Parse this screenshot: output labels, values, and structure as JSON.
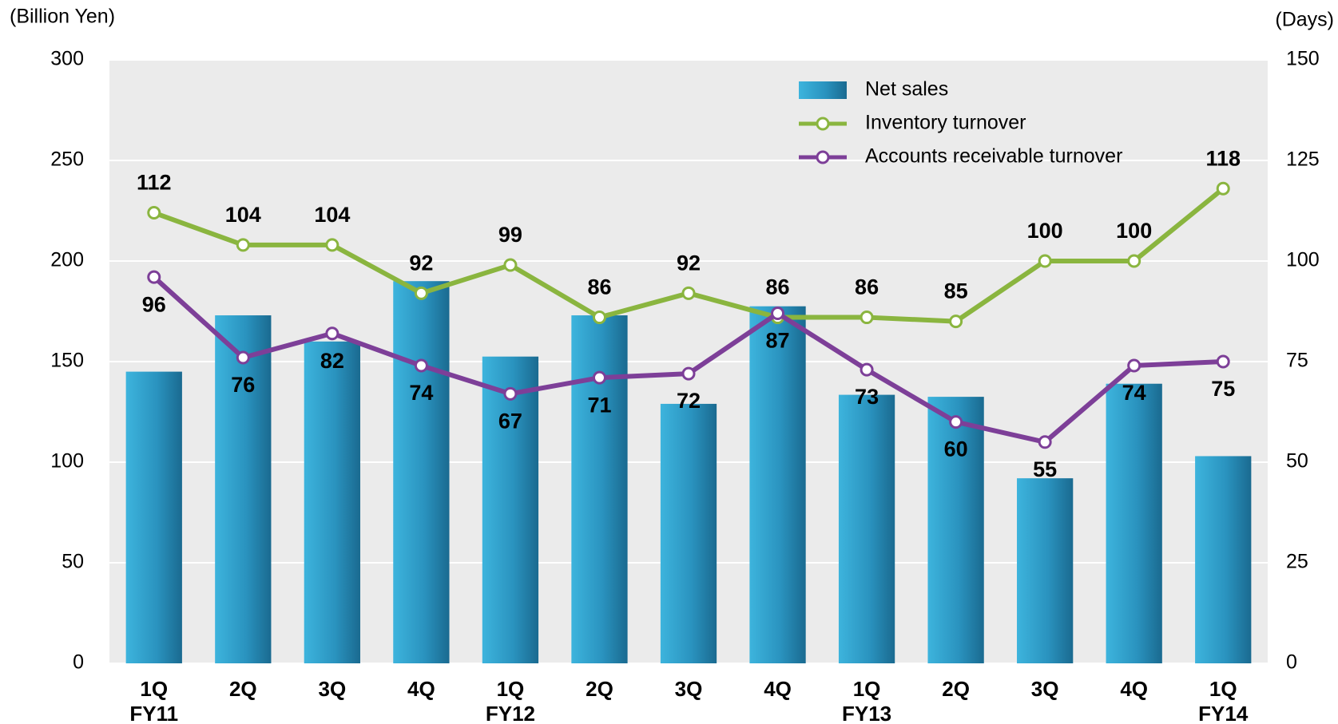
{
  "chart_data": {
    "type": "bar_line",
    "y_label": "(Billion Yen)",
    "y2_label": "(Days)",
    "categories": [
      [
        "1Q",
        "FY11"
      ],
      [
        "2Q"
      ],
      [
        "3Q"
      ],
      [
        "4Q"
      ],
      [
        "1Q",
        "FY12"
      ],
      [
        "2Q"
      ],
      [
        "3Q"
      ],
      [
        "4Q"
      ],
      [
        "1Q",
        "FY13"
      ],
      [
        "2Q"
      ],
      [
        "3Q"
      ],
      [
        "4Q"
      ],
      [
        "1Q",
        "FY14"
      ]
    ],
    "ylim": [
      0,
      300
    ],
    "yticks": [
      0,
      50,
      100,
      150,
      200,
      250,
      300
    ],
    "y2lim": [
      0,
      150
    ],
    "y2ticks": [
      0,
      25,
      50,
      75,
      100,
      125,
      150
    ],
    "grid": true,
    "legend": "upper right",
    "series": [
      {
        "name": "Net sales",
        "type": "bar",
        "color": "#2a93bf",
        "values": [
          145,
          173,
          160,
          190,
          152.5,
          173,
          129,
          177.5,
          133.5,
          132.5,
          92,
          139,
          103
        ]
      },
      {
        "name": "Inventory turnover",
        "type": "line",
        "axis": "y2",
        "color": "#8ab53f",
        "values": [
          112,
          104,
          104,
          92,
          99,
          86,
          92,
          86,
          86,
          85,
          100,
          100,
          118
        ]
      },
      {
        "name": "Accounts receivable turnover",
        "type": "line",
        "axis": "y2",
        "color": "#7d3f98",
        "values": [
          96,
          76,
          82,
          74,
          67,
          71,
          72,
          87,
          73,
          60,
          55,
          74,
          75
        ]
      }
    ]
  }
}
